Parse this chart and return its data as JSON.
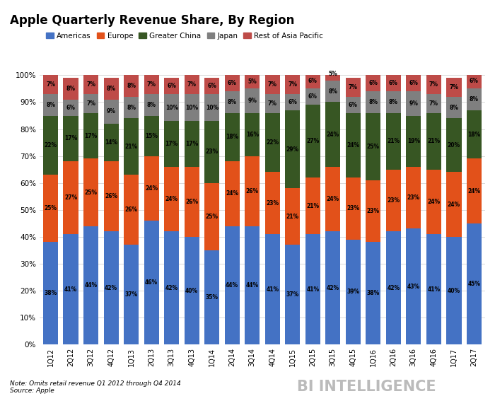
{
  "title": "Apple Quarterly Revenue Share, By Region",
  "categories": [
    "1Q12",
    "2Q12",
    "3Q12",
    "4Q12",
    "1Q13",
    "2Q13",
    "3Q13",
    "4Q13",
    "1Q14",
    "2Q14",
    "3Q14",
    "4Q14",
    "1Q15",
    "2Q15",
    "3Q15",
    "4Q15",
    "1Q16",
    "2Q16",
    "3Q16",
    "4Q16",
    "1Q17",
    "2Q17"
  ],
  "americas": [
    38,
    41,
    44,
    42,
    37,
    46,
    42,
    40,
    35,
    44,
    44,
    41,
    37,
    41,
    42,
    39,
    38,
    42,
    43,
    41,
    40,
    45
  ],
  "europe": [
    25,
    27,
    25,
    26,
    26,
    24,
    24,
    26,
    25,
    24,
    26,
    23,
    21,
    21,
    24,
    23,
    23,
    23,
    23,
    24,
    24,
    24
  ],
  "greater_china": [
    22,
    17,
    17,
    14,
    21,
    15,
    17,
    17,
    23,
    18,
    16,
    22,
    29,
    27,
    24,
    24,
    25,
    21,
    19,
    21,
    20,
    18
  ],
  "japan": [
    8,
    6,
    7,
    9,
    8,
    8,
    10,
    10,
    10,
    8,
    9,
    7,
    6,
    6,
    8,
    6,
    8,
    8,
    9,
    7,
    8,
    8
  ],
  "rest_asia": [
    7,
    8,
    7,
    8,
    8,
    7,
    6,
    7,
    6,
    6,
    5,
    7,
    7,
    6,
    5,
    7,
    6,
    6,
    6,
    7,
    7,
    6
  ],
  "colors": {
    "americas": "#4472C4",
    "europe": "#E2511A",
    "greater_china": "#375623",
    "japan": "#7F7F7F",
    "rest_asia": "#BE4B48"
  },
  "note": "Note: Omits retail revenue Q1 2012 through Q4 2014\nSource: Apple",
  "watermark": "BI INTELLIGENCE",
  "background_color": "#FFFFFF",
  "bar_width": 0.75,
  "label_fontsize": 5.5,
  "title_fontsize": 12,
  "legend_fontsize": 7.5,
  "tick_fontsize": 7,
  "ytick_fontsize": 7.5,
  "note_fontsize": 6.5,
  "watermark_fontsize": 15
}
